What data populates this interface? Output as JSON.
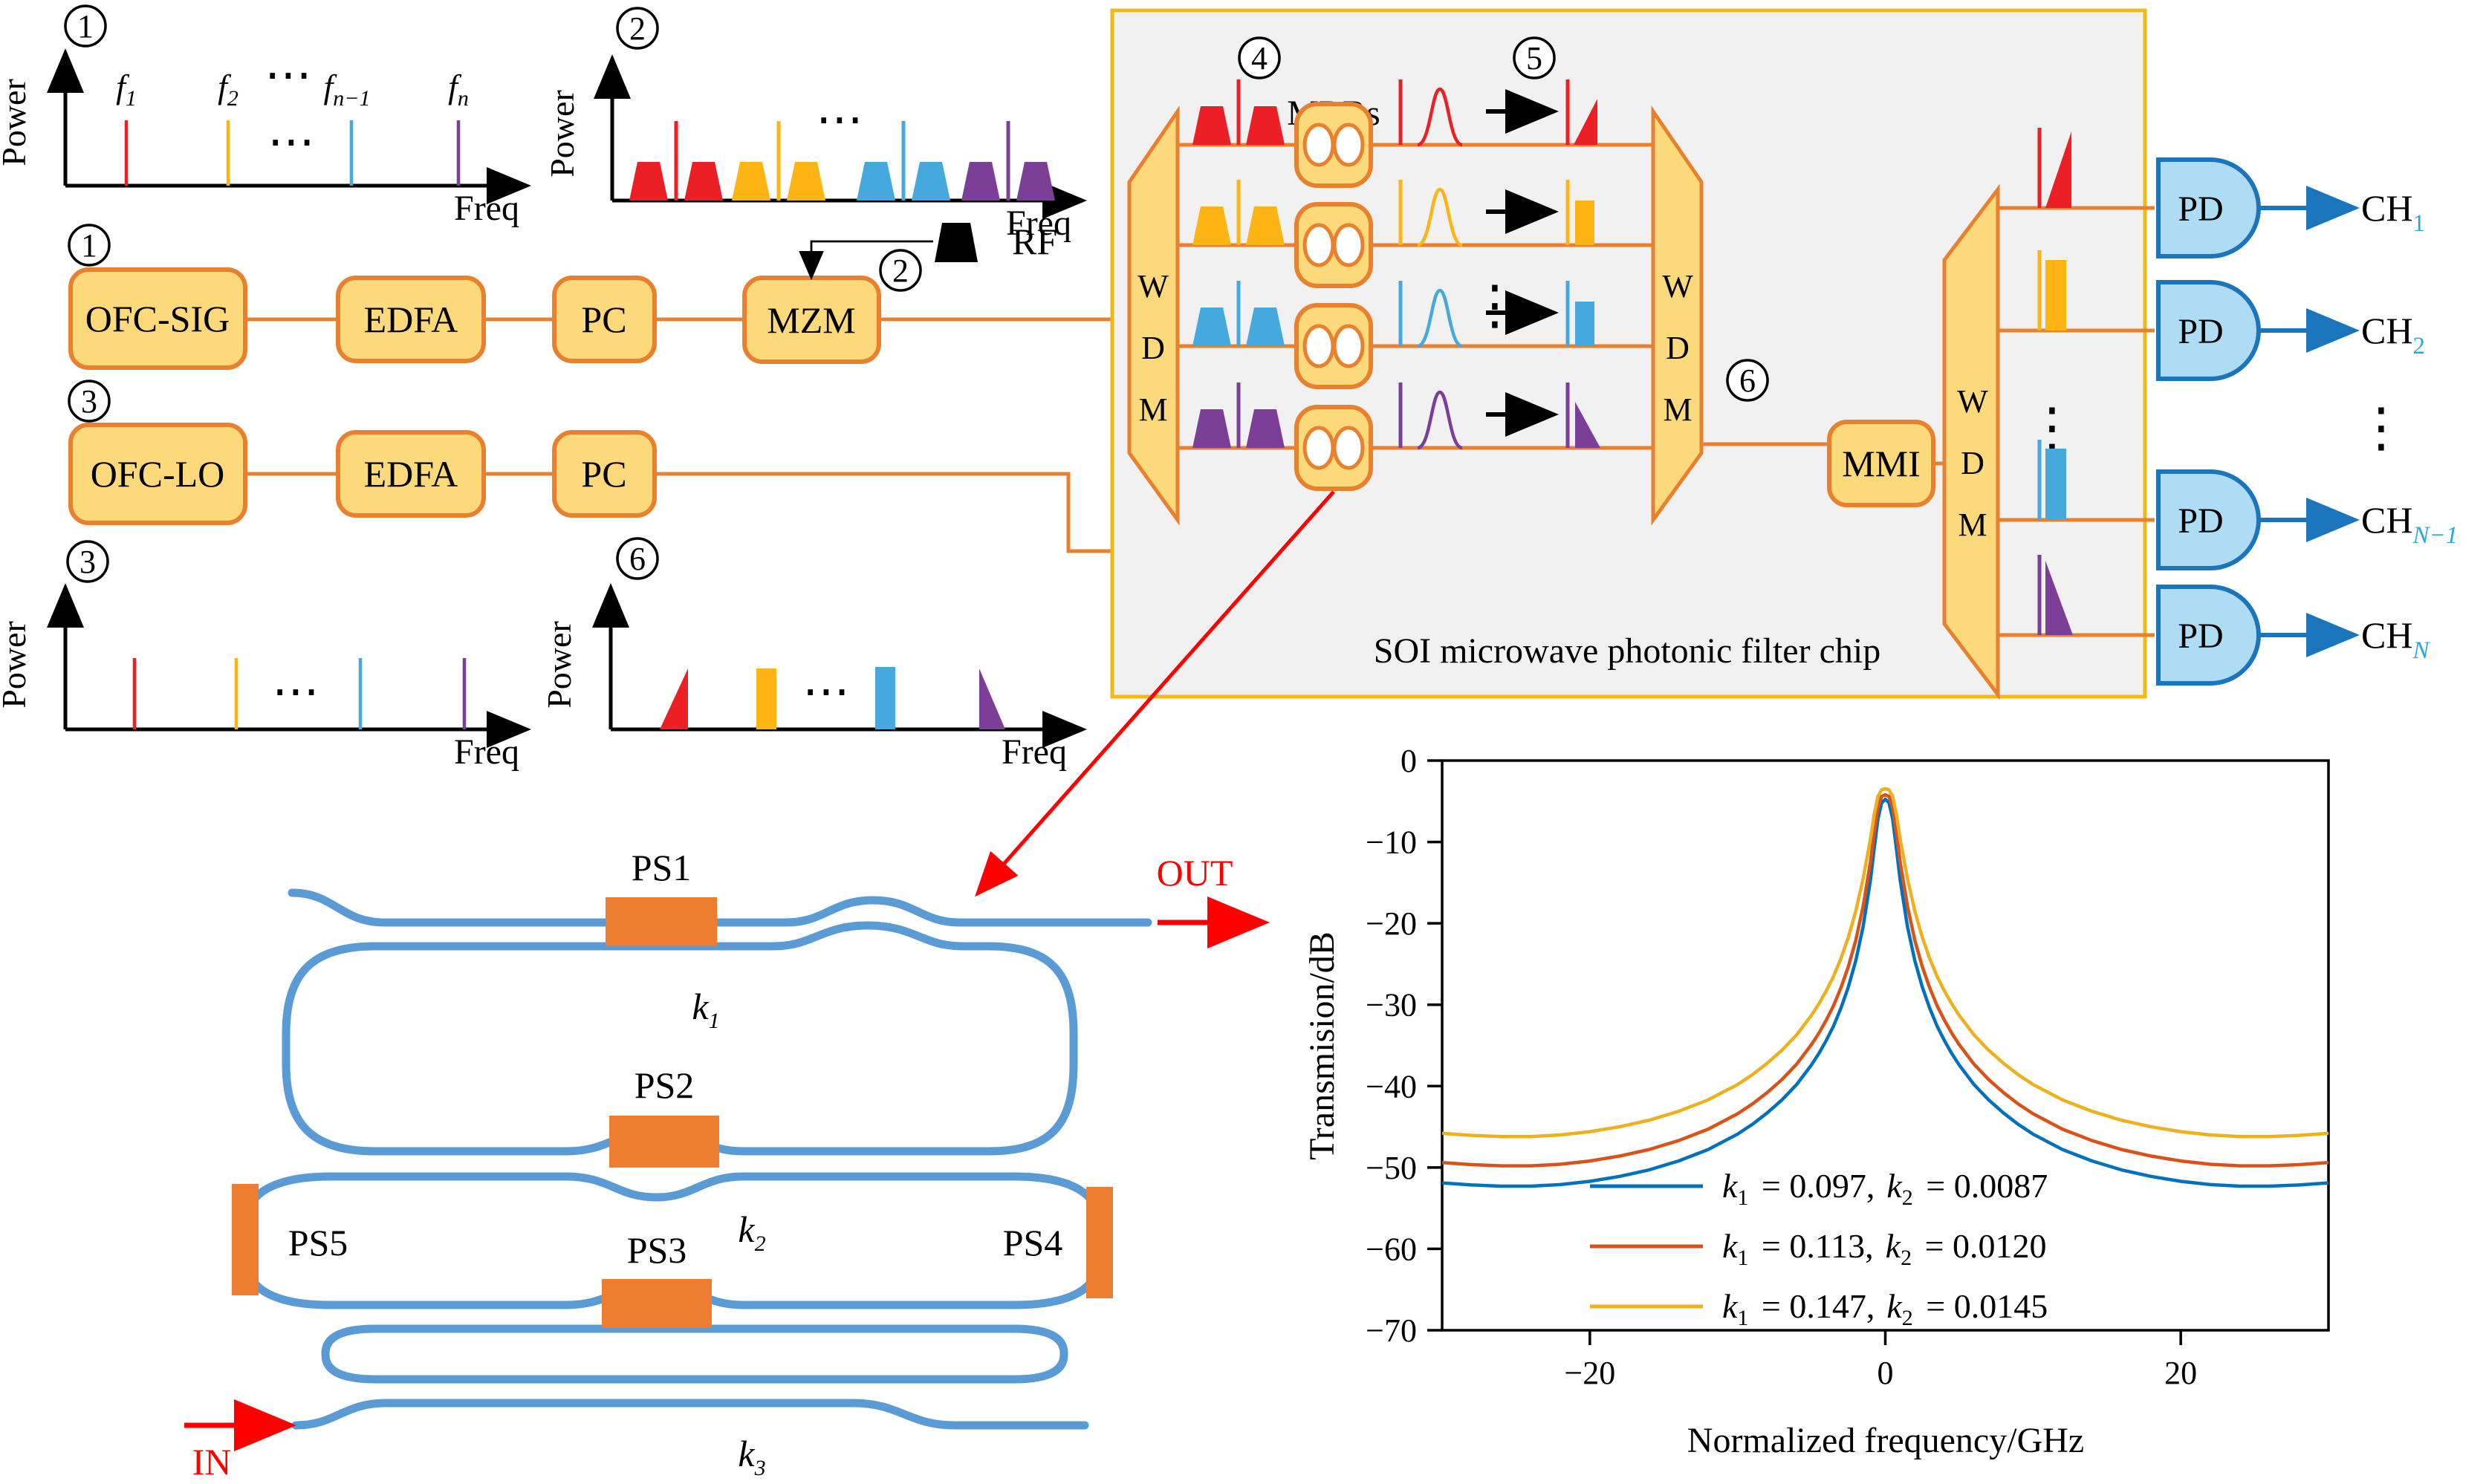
{
  "glyphs": {
    "hdots": "⋯",
    "vdots": "⋮"
  },
  "markers": {
    "m1": "1",
    "m2": "2",
    "m3": "3",
    "m4": "4",
    "m5": "5",
    "m6": "6"
  },
  "colors": {
    "red": "#EC2024",
    "yellow": "#FDB515",
    "blue": "#45A9DE",
    "purple": "#7C3F98",
    "box_fill": "#FCD97A",
    "box_stroke": "#E8802D",
    "chip_bg": "#F1F1F1",
    "chip_border": "#F0B919",
    "pd_fill": "#AEDCF4",
    "pd_stroke": "#1B75BC",
    "waveguide": "#5B9BD5",
    "phase_shifter": "#ED7D31",
    "annotation_red": "#FF0000",
    "curve_blue": "#0072BD",
    "curve_orange": "#D95319",
    "curve_yellow": "#EDB120"
  },
  "plots": {
    "p1": {
      "ylabel": "Power",
      "xlabel": "Freq",
      "lines": [
        {
          "base": "f",
          "sub": "1"
        },
        {
          "base": "f",
          "sub": "2"
        },
        {
          "base": "f",
          "sub": "n−1"
        },
        {
          "base": "f",
          "sub": "n"
        }
      ]
    },
    "p2": {
      "ylabel": "Power",
      "xlabel": "Freq"
    },
    "p3": {
      "ylabel": "Power",
      "xlabel": "Freq"
    },
    "p6": {
      "ylabel": "Power",
      "xlabel": "Freq"
    }
  },
  "tx_row1": {
    "boxes": [
      "OFC-SIG",
      "EDFA",
      "PC",
      "MZM"
    ],
    "rf": "RF"
  },
  "tx_row2": {
    "boxes": [
      "OFC-LO",
      "EDFA",
      "PC"
    ]
  },
  "chip": {
    "title": "SOI microwave photonic filter chip",
    "mrrs": "MRRs",
    "wdm": [
      "W",
      "D",
      "M"
    ],
    "mmi": "MMI",
    "pd": "PD",
    "channels": [
      {
        "base": "CH",
        "sub": "1"
      },
      {
        "base": "CH",
        "sub": "2"
      },
      {
        "base": "CH",
        "sub": "N−1"
      },
      {
        "base": "CH",
        "sub": "N"
      }
    ]
  },
  "ring": {
    "ps": [
      "PS1",
      "PS2",
      "PS3",
      "PS4",
      "PS5"
    ],
    "k": [
      {
        "base": "k",
        "sub": "1"
      },
      {
        "base": "k",
        "sub": "2"
      },
      {
        "base": "k",
        "sub": "3"
      }
    ],
    "in_label": "IN",
    "out_label": "OUT"
  },
  "chart_data": {
    "type": "line",
    "title": "",
    "xlabel": "Normalized frequency/GHz",
    "ylabel": "Transmision/dB",
    "xlim": [
      -30,
      30
    ],
    "ylim": [
      -70,
      0
    ],
    "grid": false,
    "legend_position": "lower center inside",
    "xticks": {
      "values": [
        -20,
        0,
        20
      ],
      "labels": [
        "−20",
        "0",
        "20"
      ]
    },
    "yticks": {
      "values": [
        0,
        -10,
        -20,
        -30,
        -40,
        -50,
        -60,
        -70
      ],
      "labels": [
        "0",
        "−10",
        "−20",
        "−30",
        "−40",
        "−50",
        "−60",
        "−70"
      ]
    },
    "legend": [
      {
        "parts": [
          "k",
          "1",
          " = 0.097,",
          "k",
          "2",
          " = 0.0087"
        ],
        "color": "#0072BD"
      },
      {
        "parts": [
          "k",
          "1",
          " = 0.113,",
          "k",
          "2",
          " = 0.0120"
        ],
        "color": "#D95319"
      },
      {
        "parts": [
          "k",
          "1",
          " = 0.147,",
          "k",
          "2",
          " = 0.0145"
        ],
        "color": "#EDB120"
      }
    ],
    "series": [
      {
        "name": "k1=0.097, k2=0.0087",
        "color": "#0072BD",
        "x": [
          -30,
          -28,
          -26,
          -24,
          -22,
          -20,
          -18,
          -16,
          -14,
          -12,
          -10,
          -9,
          -8,
          -7,
          -6,
          -5,
          -4.5,
          -4,
          -3.5,
          -3,
          -2.5,
          -2,
          -1.5,
          -1,
          -0.75,
          -0.5,
          -0.25,
          0,
          0.25,
          0.5,
          0.75,
          1,
          1.5,
          2,
          2.5,
          3,
          3.5,
          4,
          4.5,
          5,
          6,
          7,
          8,
          9,
          10,
          12,
          14,
          16,
          18,
          20,
          22,
          24,
          26,
          28,
          30
        ],
        "y": [
          -51.9,
          -52.15,
          -52.3,
          -52.3,
          -52.1,
          -51.7,
          -51.1,
          -50.3,
          -49.2,
          -47.8,
          -45.9,
          -44.7,
          -43.3,
          -41.7,
          -39.8,
          -37.4,
          -36.0,
          -34.4,
          -32.6,
          -30.4,
          -27.8,
          -24.6,
          -20.4,
          -14.6,
          -10.8,
          -7.2,
          -5.2,
          -4.75,
          -5.2,
          -7.2,
          -10.8,
          -14.6,
          -20.4,
          -24.6,
          -27.8,
          -30.4,
          -32.6,
          -34.4,
          -36.0,
          -37.4,
          -39.8,
          -41.7,
          -43.3,
          -44.7,
          -45.9,
          -47.8,
          -49.2,
          -50.3,
          -51.1,
          -51.7,
          -52.1,
          -52.3,
          -52.3,
          -52.15,
          -51.9
        ]
      },
      {
        "name": "k1=0.113, k2=0.0120",
        "color": "#D95319",
        "x": [
          -30,
          -28,
          -26,
          -24,
          -22,
          -20,
          -18,
          -16,
          -14,
          -12,
          -10,
          -9,
          -8,
          -7,
          -6,
          -5,
          -4.5,
          -4,
          -3.5,
          -3,
          -2.5,
          -2,
          -1.5,
          -1,
          -0.75,
          -0.5,
          -0.25,
          0,
          0.25,
          0.5,
          0.75,
          1,
          1.5,
          2,
          2.5,
          3,
          3.5,
          4,
          4.5,
          5,
          6,
          7,
          8,
          9,
          10,
          12,
          14,
          16,
          18,
          20,
          22,
          24,
          26,
          28,
          30
        ],
        "y": [
          -49.4,
          -49.65,
          -49.8,
          -49.8,
          -49.6,
          -49.2,
          -48.6,
          -47.8,
          -46.7,
          -45.3,
          -43.4,
          -42.2,
          -40.8,
          -39.2,
          -37.3,
          -34.9,
          -33.5,
          -31.9,
          -30.1,
          -27.9,
          -25.3,
          -22.1,
          -17.9,
          -12.4,
          -8.8,
          -5.8,
          -4.4,
          -4.2,
          -4.4,
          -5.8,
          -8.8,
          -12.4,
          -17.9,
          -22.1,
          -25.3,
          -27.9,
          -30.1,
          -31.9,
          -33.5,
          -34.9,
          -37.3,
          -39.2,
          -40.8,
          -42.2,
          -43.4,
          -45.3,
          -46.7,
          -47.8,
          -48.6,
          -49.2,
          -49.6,
          -49.8,
          -49.8,
          -49.65,
          -49.4
        ]
      },
      {
        "name": "k1=0.147, k2=0.0145",
        "color": "#EDB120",
        "x": [
          -30,
          -28,
          -26,
          -24,
          -22,
          -20,
          -18,
          -16,
          -14,
          -12,
          -10,
          -9,
          -8,
          -7,
          -6,
          -5,
          -4.5,
          -4,
          -3.5,
          -3,
          -2.5,
          -2,
          -1.5,
          -1,
          -0.75,
          -0.5,
          -0.25,
          0,
          0.25,
          0.5,
          0.75,
          1,
          1.5,
          2,
          2.5,
          3,
          3.5,
          4,
          4.5,
          5,
          6,
          7,
          8,
          9,
          10,
          12,
          14,
          16,
          18,
          20,
          22,
          24,
          26,
          28,
          30
        ],
        "y": [
          -45.8,
          -46.05,
          -46.2,
          -46.2,
          -46.0,
          -45.6,
          -45.0,
          -44.2,
          -43.1,
          -41.7,
          -39.8,
          -38.6,
          -37.2,
          -35.6,
          -33.7,
          -31.3,
          -29.9,
          -28.3,
          -26.5,
          -24.3,
          -21.7,
          -18.5,
          -14.5,
          -9.6,
          -6.6,
          -4.4,
          -3.6,
          -3.45,
          -3.6,
          -4.4,
          -6.6,
          -9.6,
          -14.5,
          -18.5,
          -21.7,
          -24.3,
          -26.5,
          -28.3,
          -29.9,
          -31.3,
          -33.7,
          -35.6,
          -37.2,
          -38.6,
          -39.8,
          -41.7,
          -43.1,
          -44.2,
          -45.0,
          -45.6,
          -46.0,
          -46.2,
          -46.2,
          -46.05,
          -45.8
        ]
      }
    ]
  }
}
